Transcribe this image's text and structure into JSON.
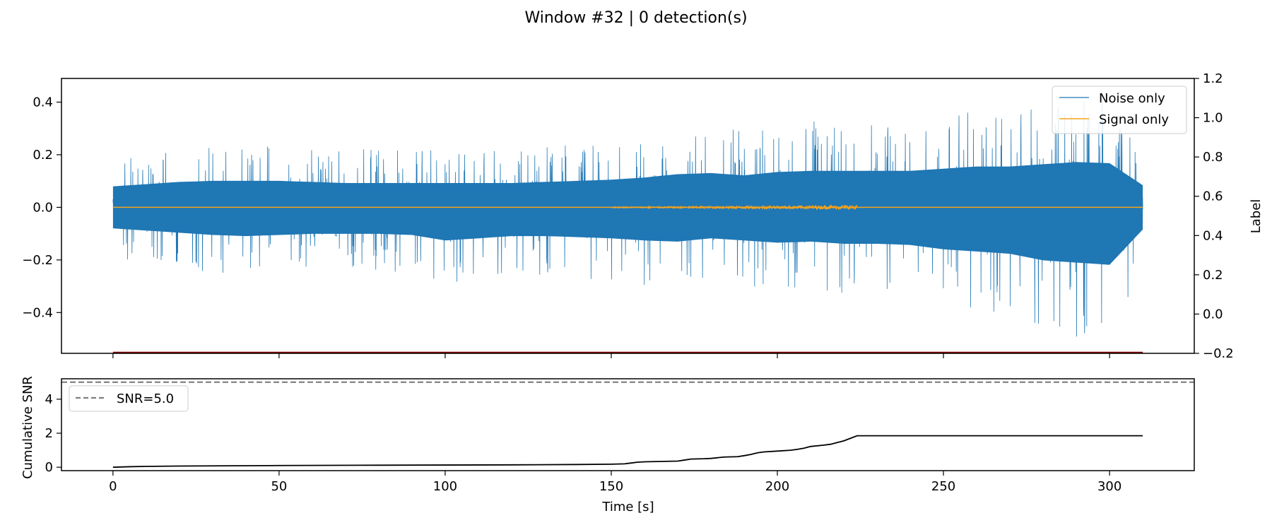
{
  "title": "Window #32 | 0 detection(s)",
  "colors": {
    "noise": "#1f77b4",
    "signal": "#f5a21b",
    "label_line": "#8b0000",
    "cumulative": "#000000",
    "threshold": "#7f7f7f"
  },
  "chart_data": [
    {
      "type": "line",
      "name": "waveform-panel",
      "x_range": [
        -15.5,
        325.5
      ],
      "ylim": [
        -0.555,
        0.49
      ],
      "y2lim": [
        -0.2,
        1.2
      ],
      "ylabel": "",
      "y2label": "Label",
      "x_ticks": [
        0,
        50,
        100,
        150,
        200,
        250,
        300
      ],
      "y_ticks": [
        0.4,
        0.2,
        0.0,
        -0.2,
        -0.4
      ],
      "y_tick_labels": [
        "0.4",
        "0.2",
        "0.0",
        "−0.2",
        "−0.4"
      ],
      "y2_ticks": [
        1.2,
        1.0,
        0.8,
        0.6,
        0.4,
        0.2,
        0.0,
        -0.2
      ],
      "y2_tick_labels": [
        "1.2",
        "1.0",
        "0.8",
        "0.6",
        "0.4",
        "0.2",
        "0.0",
        "−0.2"
      ],
      "legend_placement": "upper right",
      "series": [
        {
          "name": "Noise only",
          "envelope_x": [
            0,
            10,
            20,
            30,
            40,
            50,
            60,
            70,
            80,
            90,
            100,
            110,
            120,
            130,
            140,
            150,
            160,
            170,
            180,
            190,
            200,
            210,
            220,
            230,
            240,
            250,
            260,
            270,
            280,
            290,
            300,
            310
          ],
          "envelope_max": [
            0.19,
            0.21,
            0.23,
            0.24,
            0.24,
            0.24,
            0.23,
            0.22,
            0.22,
            0.22,
            0.22,
            0.22,
            0.22,
            0.23,
            0.24,
            0.25,
            0.27,
            0.3,
            0.31,
            0.29,
            0.32,
            0.33,
            0.33,
            0.33,
            0.33,
            0.35,
            0.37,
            0.37,
            0.39,
            0.41,
            0.4,
            0.2
          ],
          "envelope_min": [
            -0.19,
            -0.21,
            -0.23,
            -0.25,
            -0.26,
            -0.25,
            -0.24,
            -0.24,
            -0.24,
            -0.25,
            -0.3,
            -0.28,
            -0.26,
            -0.26,
            -0.27,
            -0.28,
            -0.3,
            -0.31,
            -0.28,
            -0.3,
            -0.32,
            -0.31,
            -0.33,
            -0.33,
            -0.34,
            -0.38,
            -0.4,
            -0.42,
            -0.48,
            -0.5,
            -0.52,
            -0.2
          ]
        },
        {
          "name": "Signal only",
          "x_range": [
            0,
            310
          ],
          "value": 0.0,
          "burst_x": [
            150,
            224
          ],
          "burst_amplitude": 0.008
        },
        {
          "name": "Label",
          "axis": "right",
          "x_range": [
            0,
            310
          ],
          "value": -0.2
        }
      ]
    },
    {
      "type": "line",
      "name": "cumulative-snr-panel",
      "x_range": [
        -15.5,
        325.5
      ],
      "ylim": [
        -0.2,
        5.2
      ],
      "xlabel": "Time [s]",
      "ylabel": "Cumulative SNR",
      "x_ticks": [
        0,
        50,
        100,
        150,
        200,
        250,
        300
      ],
      "y_ticks": [
        0,
        2,
        4
      ],
      "legend_placement": "upper left",
      "threshold": {
        "name": "SNR=5.0",
        "value": 5.0
      },
      "series": [
        {
          "name": "cumulative",
          "x": [
            0,
            5,
            10,
            20,
            30,
            50,
            80,
            100,
            120,
            140,
            150,
            154,
            156,
            158,
            160,
            165,
            170,
            172,
            174,
            178,
            180,
            184,
            188,
            190,
            192,
            194,
            196,
            200,
            204,
            206,
            208,
            210,
            214,
            216,
            218,
            220,
            222,
            224,
            230,
            250,
            280,
            310
          ],
          "y": [
            0.0,
            0.03,
            0.05,
            0.07,
            0.08,
            0.1,
            0.12,
            0.13,
            0.14,
            0.16,
            0.18,
            0.2,
            0.25,
            0.3,
            0.32,
            0.34,
            0.36,
            0.42,
            0.48,
            0.5,
            0.52,
            0.6,
            0.62,
            0.68,
            0.75,
            0.85,
            0.9,
            0.95,
            1.0,
            1.05,
            1.12,
            1.22,
            1.3,
            1.35,
            1.45,
            1.55,
            1.7,
            1.85,
            1.85,
            1.85,
            1.85,
            1.85
          ]
        }
      ]
    }
  ]
}
